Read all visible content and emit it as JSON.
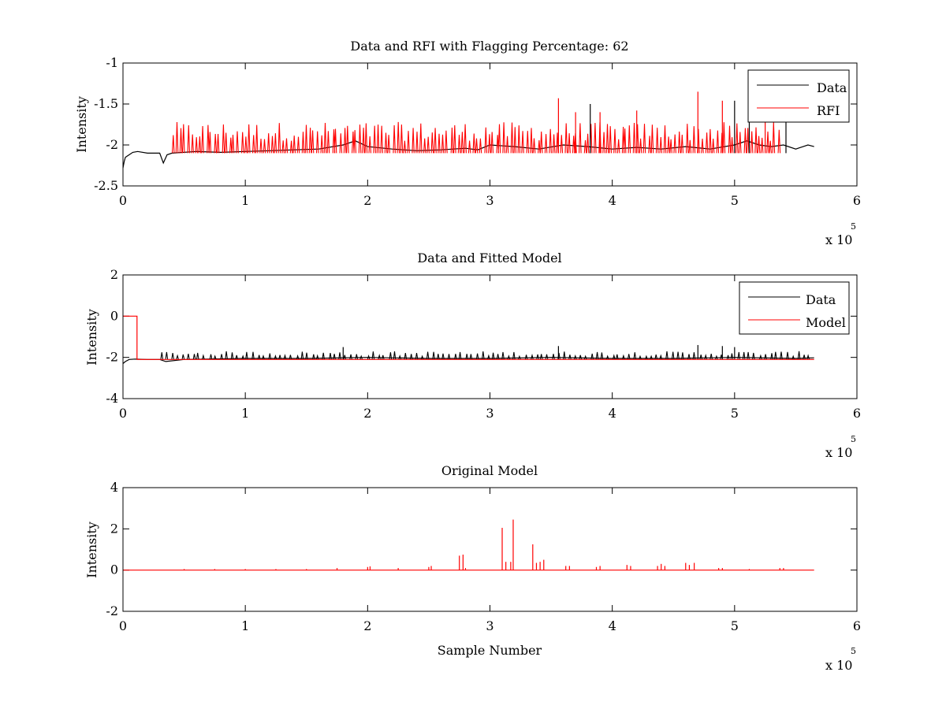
{
  "figure": {
    "background": "#ffffff",
    "data_color": "#000000",
    "rfi_color": "#ff0000",
    "model_color": "#ff0000"
  },
  "chart_data": [
    {
      "type": "line",
      "title": "Data and RFI with Flagging Percentage: 62",
      "xlabel": "",
      "ylabel": "Intensity",
      "xlim": [
        0,
        6
      ],
      "ylim": [
        -2.5,
        -1
      ],
      "x_ticks": [
        0,
        1,
        2,
        3,
        4,
        5,
        6
      ],
      "y_ticks": [
        -2.5,
        -2,
        -1.5,
        -1
      ],
      "x_tick_labels": [
        "0",
        "1",
        "2",
        "3",
        "4",
        "5",
        "6"
      ],
      "y_tick_labels": [
        "-2.5",
        "-2",
        "-1.5",
        "-1"
      ],
      "x_multiplier": {
        "prefix": "x 10",
        "exponent": "5"
      },
      "legend": {
        "position": "top-right",
        "entries": [
          "Data",
          "RFI"
        ]
      },
      "series": [
        {
          "name": "Data",
          "color": "#000000",
          "x": [
            0,
            0.01,
            0.02,
            0.05,
            0.08,
            0.12,
            0.2,
            0.3,
            0.33,
            0.36,
            0.4,
            0.6,
            0.8,
            1.0,
            1.2,
            1.4,
            1.6,
            1.8,
            1.9,
            2.0,
            2.2,
            2.4,
            2.6,
            2.8,
            2.9,
            3.0,
            3.2,
            3.4,
            3.6,
            3.8,
            4.0,
            4.2,
            4.4,
            4.6,
            4.8,
            5.0,
            5.1,
            5.2,
            5.3,
            5.4,
            5.5,
            5.6,
            5.65
          ],
          "y": [
            -2.28,
            -2.2,
            -2.15,
            -2.12,
            -2.09,
            -2.08,
            -2.1,
            -2.1,
            -2.22,
            -2.12,
            -2.1,
            -2.08,
            -2.09,
            -2.08,
            -2.07,
            -2.06,
            -2.05,
            -2.0,
            -1.95,
            -2.02,
            -2.05,
            -2.07,
            -2.06,
            -2.04,
            -2.06,
            -2.0,
            -2.02,
            -2.05,
            -2.0,
            -2.02,
            -2.05,
            -2.03,
            -2.05,
            -2.02,
            -2.05,
            -2.0,
            -1.95,
            -2.0,
            -2.02,
            -2.0,
            -2.05,
            -2.0,
            -2.02
          ]
        }
      ],
      "spikes": {
        "name": "RFI",
        "color": "#ff0000",
        "x_start": 0.4,
        "x_end": 5.35,
        "count": 160,
        "baseline": -2.1,
        "peak_min": -1.95,
        "peak_max": -1.72,
        "largest_peaks": [
          [
            3.56,
            -1.43
          ],
          [
            4.7,
            -1.35
          ],
          [
            4.9,
            -1.46
          ],
          [
            4.2,
            -1.58
          ],
          [
            3.9,
            -1.6
          ],
          [
            3.7,
            -1.6
          ],
          [
            5.25,
            -1.48
          ]
        ],
        "data_peaks": [
          [
            3.82,
            -1.5
          ],
          [
            5.0,
            -1.46
          ],
          [
            5.12,
            -1.52
          ],
          [
            5.42,
            -1.5
          ]
        ]
      }
    },
    {
      "type": "line",
      "title": "Data and Fitted Model",
      "xlabel": "",
      "ylabel": "Intensity",
      "xlim": [
        0,
        6
      ],
      "ylim": [
        -4,
        2
      ],
      "x_ticks": [
        0,
        1,
        2,
        3,
        4,
        5,
        6
      ],
      "y_ticks": [
        -4,
        -2,
        0,
        2
      ],
      "x_tick_labels": [
        "0",
        "1",
        "2",
        "3",
        "4",
        "5",
        "6"
      ],
      "y_tick_labels": [
        "-4",
        "-2",
        "0",
        "2"
      ],
      "x_multiplier": {
        "prefix": "x 10",
        "exponent": "5"
      },
      "legend": {
        "position": "top-right",
        "entries": [
          "Data",
          "Model"
        ]
      },
      "series": [
        {
          "name": "Data",
          "color": "#000000",
          "x": [
            0,
            0.02,
            0.05,
            0.1,
            0.2,
            0.3,
            0.35,
            0.5,
            1.0,
            1.5,
            2.0,
            2.5,
            3.0,
            3.5,
            4.0,
            4.5,
            5.0,
            5.5,
            5.65
          ],
          "y": [
            -2.3,
            -2.2,
            -2.1,
            -2.08,
            -2.1,
            -2.1,
            -2.2,
            -2.1,
            -2.05,
            -2.05,
            -2.0,
            -2.05,
            -2.05,
            -2.0,
            -2.05,
            -2.05,
            -2.0,
            -2.05,
            -2.02
          ]
        },
        {
          "name": "Model",
          "color": "#ff0000",
          "x": [
            0,
            0.115,
            0.115,
            5.65
          ],
          "y": [
            0,
            0,
            -2.1,
            -2.1
          ]
        }
      ],
      "spikes": {
        "color": "#000000",
        "x_start": 0.3,
        "x_end": 5.6,
        "count": 120,
        "baseline": -2.08,
        "peak_min": -1.95,
        "peak_max": -1.7,
        "largest_peaks": [
          [
            3.56,
            -1.45
          ],
          [
            4.7,
            -1.4
          ],
          [
            4.9,
            -1.45
          ],
          [
            5.0,
            -1.5
          ],
          [
            1.8,
            -1.5
          ]
        ]
      }
    },
    {
      "type": "line",
      "title": "Original Model",
      "xlabel": "Sample Number",
      "ylabel": "Intensity",
      "xlim": [
        0,
        6
      ],
      "ylim": [
        -2,
        4
      ],
      "x_ticks": [
        0,
        1,
        2,
        3,
        4,
        5,
        6
      ],
      "y_ticks": [
        -2,
        0,
        2,
        4
      ],
      "x_tick_labels": [
        "0",
        "1",
        "2",
        "3",
        "4",
        "5",
        "6"
      ],
      "y_tick_labels": [
        "-2",
        "0",
        "2",
        "4"
      ],
      "x_multiplier": {
        "prefix": "x 10",
        "exponent": "5"
      },
      "legend": null,
      "series": [
        {
          "name": "Original Model",
          "color": "#ff0000",
          "x": [
            0,
            5.65
          ],
          "y": [
            0,
            0
          ]
        }
      ],
      "spikes": {
        "color": "#ff0000",
        "baseline": 0,
        "peaks": [
          [
            0.5,
            0.05
          ],
          [
            0.75,
            0.05
          ],
          [
            1.0,
            0.05
          ],
          [
            1.25,
            0.05
          ],
          [
            1.5,
            0.05
          ],
          [
            1.75,
            0.1
          ],
          [
            2.0,
            0.15
          ],
          [
            2.02,
            0.18
          ],
          [
            2.25,
            0.1
          ],
          [
            2.5,
            0.15
          ],
          [
            2.52,
            0.2
          ],
          [
            2.75,
            0.7
          ],
          [
            2.78,
            0.75
          ],
          [
            2.8,
            0.1
          ],
          [
            3.1,
            2.05
          ],
          [
            3.13,
            0.4
          ],
          [
            3.17,
            0.4
          ],
          [
            3.19,
            2.45
          ],
          [
            3.35,
            1.25
          ],
          [
            3.38,
            0.35
          ],
          [
            3.41,
            0.4
          ],
          [
            3.44,
            0.5
          ],
          [
            3.62,
            0.2
          ],
          [
            3.65,
            0.2
          ],
          [
            3.87,
            0.15
          ],
          [
            3.9,
            0.2
          ],
          [
            4.12,
            0.25
          ],
          [
            4.15,
            0.2
          ],
          [
            4.37,
            0.2
          ],
          [
            4.4,
            0.3
          ],
          [
            4.43,
            0.2
          ],
          [
            4.6,
            0.35
          ],
          [
            4.63,
            0.25
          ],
          [
            4.67,
            0.35
          ],
          [
            4.87,
            0.1
          ],
          [
            4.9,
            0.1
          ],
          [
            5.12,
            0.05
          ],
          [
            5.37,
            0.1
          ],
          [
            5.4,
            0.1
          ]
        ]
      }
    }
  ]
}
